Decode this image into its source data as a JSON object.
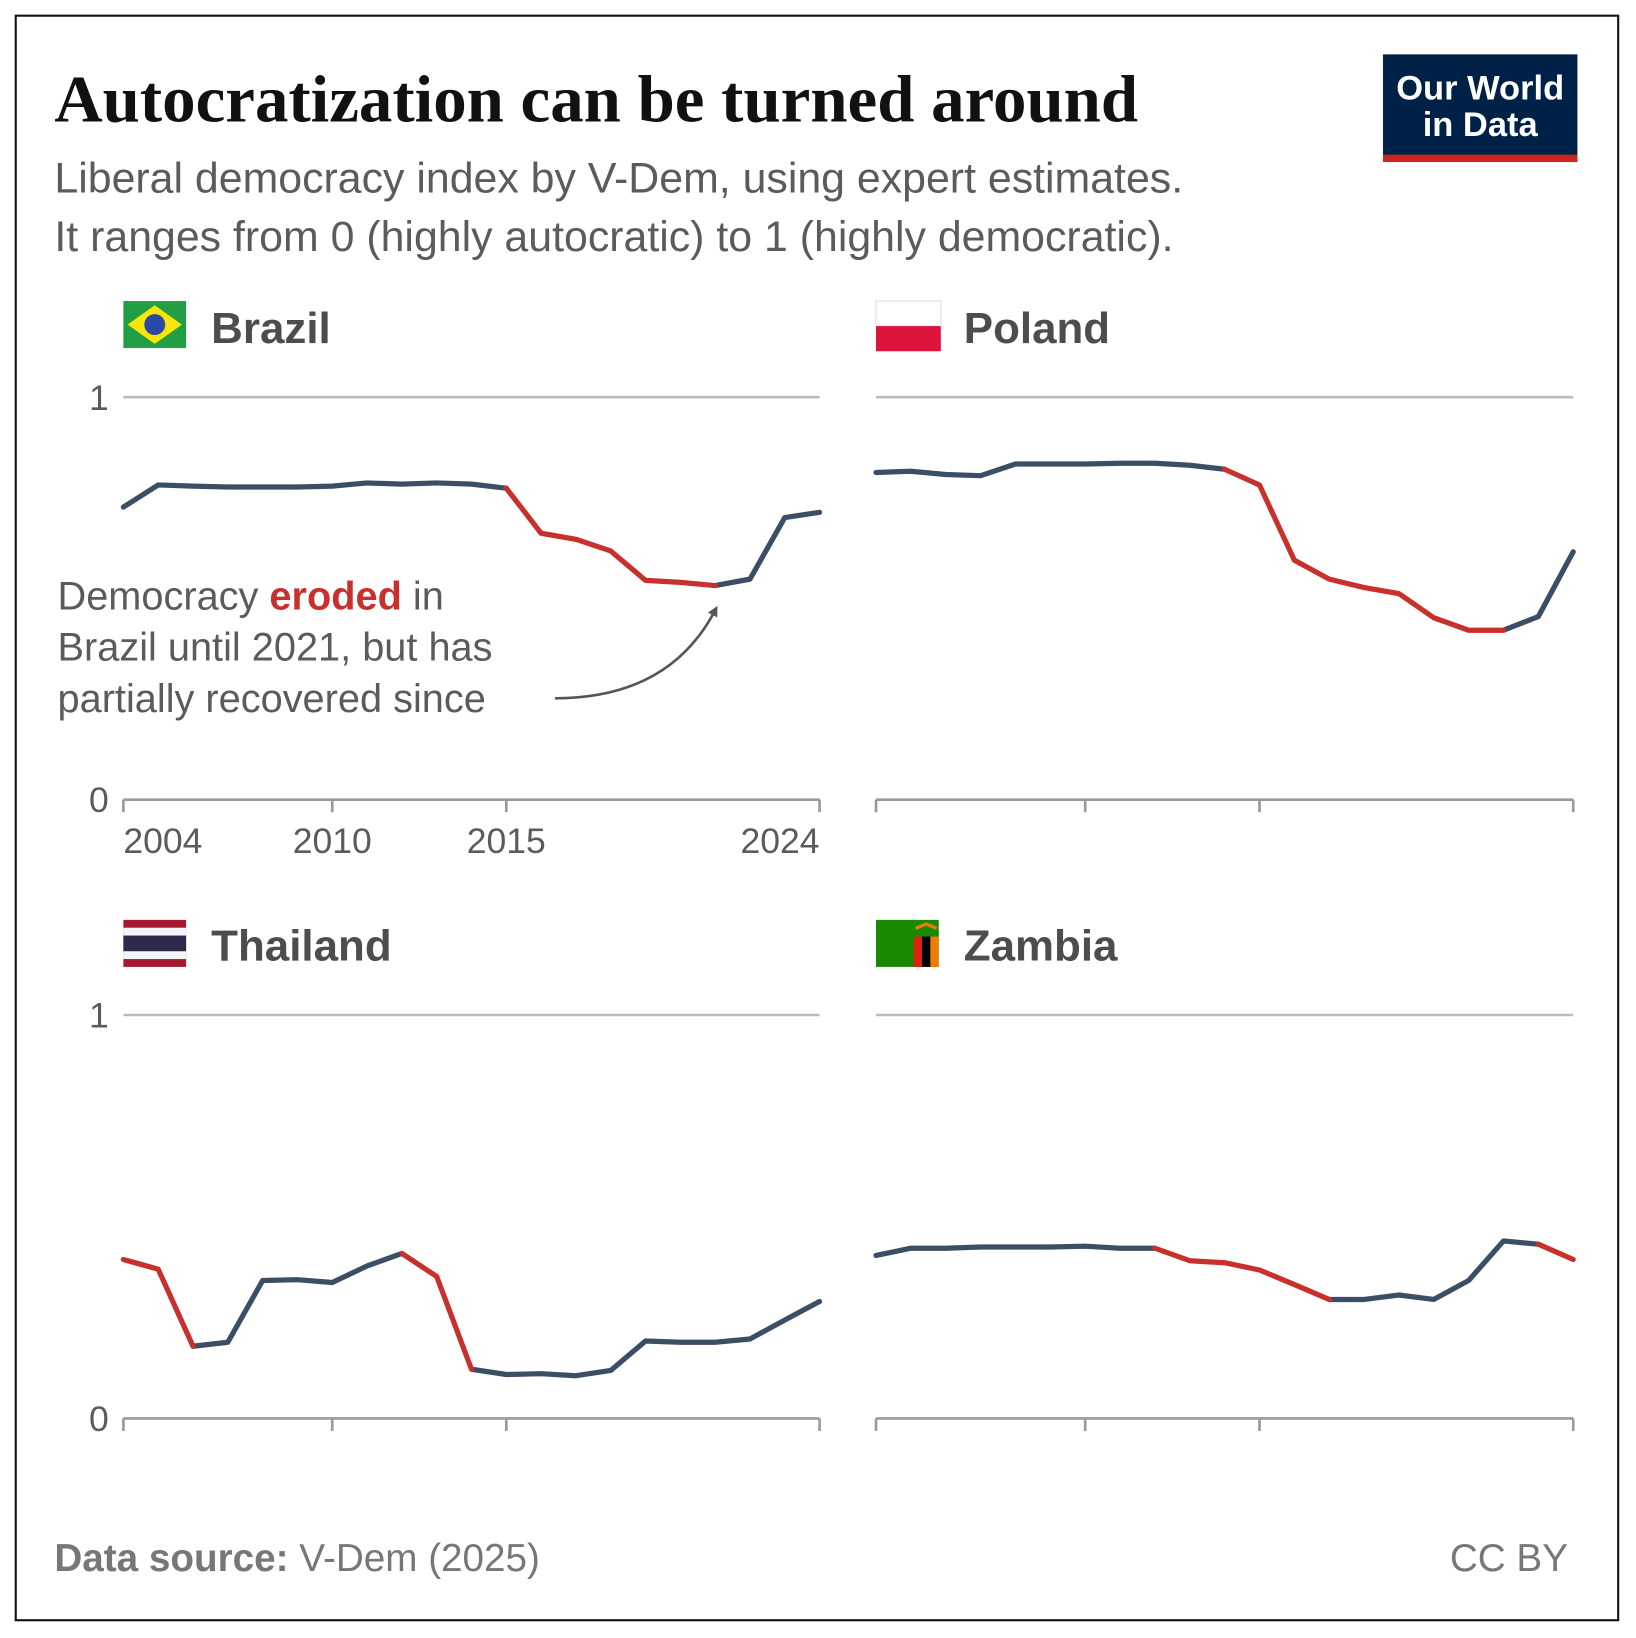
{
  "title": "Autocratization can be turned around",
  "subtitle": [
    "Liberal democracy index by V-Dem, using expert estimates.",
    "It ranges from 0 (highly autocratic) to 1 (highly democratic)."
  ],
  "logo": [
    "Our World",
    "in Data"
  ],
  "source_label": "Data source:",
  "source": "V-Dem (2025)",
  "license": "CC BY",
  "chart_data": [
    {
      "type": "line",
      "title": "Brazil",
      "x": [
        2004,
        2005,
        2006,
        2007,
        2008,
        2009,
        2010,
        2011,
        2012,
        2013,
        2014,
        2015,
        2016,
        2017,
        2018,
        2019,
        2020,
        2021,
        2022,
        2023,
        2024
      ],
      "xlim": [
        2004,
        2024
      ],
      "xticks": [
        2004,
        2010,
        2015,
        2024
      ],
      "show_xtick_labels": true,
      "ylim": [
        0,
        1
      ],
      "yticks": [
        0,
        1
      ],
      "show_ytick_labels": true,
      "series": [
        {
          "color": "#3c4e66",
          "values": [
            0.727,
            0.782,
            0.779,
            0.777,
            0.777,
            0.777,
            0.779,
            0.787,
            0.784,
            0.787,
            0.784,
            0.774,
            null,
            null,
            null,
            null,
            null,
            0.532,
            0.548,
            0.701,
            0.714
          ]
        },
        {
          "color": "#c8312b",
          "values": [
            null,
            null,
            null,
            null,
            null,
            null,
            null,
            null,
            null,
            null,
            null,
            0.774,
            0.662,
            0.647,
            0.618,
            0.545,
            0.54,
            0.532,
            null,
            null,
            null
          ]
        }
      ],
      "annotation": [
        [
          "Democracy",
          "eroded",
          "in"
        ],
        [
          "Brazil until 2021, but has"
        ],
        [
          "partially recovered since"
        ]
      ]
    },
    {
      "type": "line",
      "title": "Poland",
      "x": [
        2004,
        2005,
        2006,
        2007,
        2008,
        2009,
        2010,
        2011,
        2012,
        2013,
        2014,
        2015,
        2016,
        2017,
        2018,
        2019,
        2020,
        2021,
        2022,
        2023,
        2024
      ],
      "xlim": [
        2004,
        2024
      ],
      "xticks": [
        2004,
        2010,
        2015,
        2024
      ],
      "show_xtick_labels": false,
      "ylim": [
        0,
        1
      ],
      "yticks": [
        0,
        1
      ],
      "show_ytick_labels": false,
      "series": [
        {
          "color": "#3c4e66",
          "values": [
            0.813,
            0.816,
            0.808,
            0.805,
            0.834,
            0.834,
            0.834,
            0.836,
            0.836,
            0.831,
            0.821,
            null,
            null,
            null,
            null,
            null,
            null,
            null,
            0.421,
            0.455,
            0.616
          ]
        },
        {
          "color": "#c8312b",
          "values": [
            null,
            null,
            null,
            null,
            null,
            null,
            null,
            null,
            null,
            null,
            0.821,
            0.782,
            0.595,
            0.548,
            0.527,
            0.512,
            0.452,
            0.421,
            0.421,
            null,
            null
          ]
        }
      ]
    },
    {
      "type": "line",
      "title": "Thailand",
      "x": [
        2004,
        2005,
        2006,
        2007,
        2008,
        2009,
        2010,
        2011,
        2012,
        2013,
        2014,
        2015,
        2016,
        2017,
        2018,
        2019,
        2020,
        2021,
        2022,
        2023,
        2024
      ],
      "xlim": [
        2004,
        2024
      ],
      "xticks": [
        2004,
        2010,
        2015,
        2024
      ],
      "show_xtick_labels": false,
      "ylim": [
        0,
        1
      ],
      "yticks": [
        0,
        1
      ],
      "show_ytick_labels": true,
      "series": [
        {
          "color": "#3c4e66",
          "values": [
            null,
            null,
            0.179,
            0.189,
            0.342,
            0.344,
            0.337,
            0.378,
            0.409,
            null,
            0.122,
            0.109,
            0.111,
            0.106,
            0.119,
            0.192,
            0.189,
            0.189,
            0.197,
            0.244,
            0.29
          ]
        },
        {
          "color": "#c8312b",
          "values": [
            0.394,
            0.37,
            0.179,
            null,
            null,
            null,
            null,
            null,
            0.409,
            0.352,
            0.122,
            null,
            null,
            null,
            null,
            null,
            null,
            null,
            null,
            null,
            null
          ]
        }
      ]
    },
    {
      "type": "line",
      "title": "Zambia",
      "x": [
        2004,
        2005,
        2006,
        2007,
        2008,
        2009,
        2010,
        2011,
        2012,
        2013,
        2014,
        2015,
        2016,
        2017,
        2018,
        2019,
        2020,
        2021,
        2022,
        2023,
        2024
      ],
      "xlim": [
        2004,
        2024
      ],
      "xticks": [
        2004,
        2010,
        2015,
        2024
      ],
      "show_xtick_labels": false,
      "ylim": [
        0,
        1
      ],
      "yticks": [
        0,
        1
      ],
      "show_ytick_labels": false,
      "series": [
        {
          "color": "#3c4e66",
          "values": [
            0.404,
            0.422,
            0.422,
            0.425,
            0.425,
            0.425,
            0.427,
            0.422,
            0.422,
            null,
            null,
            null,
            null,
            0.295,
            0.295,
            0.306,
            0.295,
            0.342,
            0.44,
            0.432,
            null
          ]
        },
        {
          "color": "#c8312b",
          "values": [
            null,
            null,
            null,
            null,
            null,
            null,
            null,
            null,
            0.422,
            0.391,
            0.386,
            0.368,
            0.332,
            0.295,
            null,
            null,
            null,
            null,
            null,
            0.432,
            0.394
          ]
        }
      ]
    }
  ]
}
